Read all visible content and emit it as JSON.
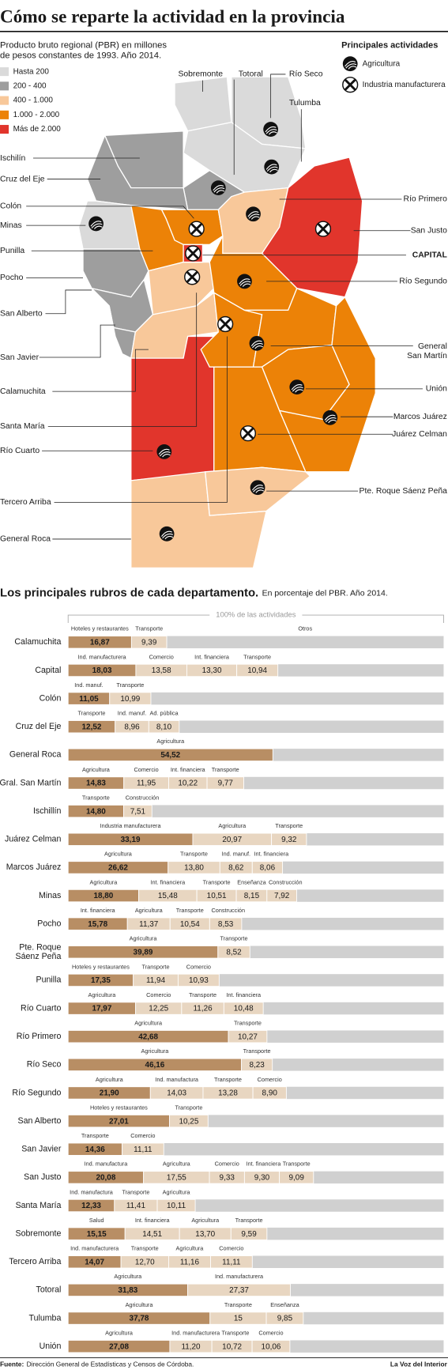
{
  "header": {
    "title": "Cómo se reparte la actividad en la provincia",
    "subtitle": [
      "Producto bruto regional (PBR) en millones",
      "de pesos constantes de 1993. Año 2014."
    ]
  },
  "map": {
    "ranges": [
      {
        "label": "Hasta 200",
        "color": "#dadada"
      },
      {
        "label": "200 - 400",
        "color": "#9e9e9e"
      },
      {
        "label": "400 - 1.000",
        "color": "#f8c89a"
      },
      {
        "label": "1.000 - 2.000",
        "color": "#ec8207"
      },
      {
        "label": "Más de 2.000",
        "color": "#e1352c"
      }
    ],
    "activities_title": "Principales actividades",
    "activities": [
      "Agricultura",
      "Industria manufacturera"
    ],
    "departments": [
      {
        "name": "Sobremonte",
        "range": 0
      },
      {
        "name": "Totoral",
        "range": 1,
        "activity": 0
      },
      {
        "name": "Río Seco",
        "range": 0,
        "activity": 0
      },
      {
        "name": "Tulumba",
        "range": 0,
        "activity": 0
      },
      {
        "name": "Ischilín",
        "range": 1
      },
      {
        "name": "Cruz del Eje",
        "range": 1
      },
      {
        "name": "Colón",
        "range": 3,
        "activity": 1
      },
      {
        "name": "Minas",
        "range": 0,
        "activity": 0
      },
      {
        "name": "Punilla",
        "range": 3
      },
      {
        "name": "Pocho",
        "range": 1
      },
      {
        "name": "San Alberto",
        "range": 1
      },
      {
        "name": "San Javier",
        "range": 1
      },
      {
        "name": "Calamuchita",
        "range": 2
      },
      {
        "name": "Santa María",
        "range": 2,
        "activity": 1
      },
      {
        "name": "Río Cuarto",
        "range": 4,
        "activity": 0
      },
      {
        "name": "Tercero Arriba",
        "range": 3,
        "activity": 1
      },
      {
        "name": "General Roca",
        "range": 2,
        "activity": 0
      },
      {
        "name": "Río Primero",
        "range": 2,
        "activity": 0
      },
      {
        "name": "San Justo",
        "range": 4,
        "activity": 1
      },
      {
        "name": "CAPITAL",
        "range": 4,
        "activity": 1
      },
      {
        "name": "Río Segundo",
        "range": 3,
        "activity": 0
      },
      {
        "name": [
          "General",
          "San Martín"
        ],
        "range": 3,
        "activity": 0
      },
      {
        "name": "Unión",
        "range": 3,
        "activity": 0
      },
      {
        "name": "Marcos Juárez",
        "range": 3,
        "activity": 0
      },
      {
        "name": "Juárez Celman",
        "range": 3,
        "activity": 1
      },
      {
        "name": "Pte. Roque Sáenz Peña",
        "range": 2,
        "activity": 0
      }
    ]
  },
  "chart_data": {
    "type": "stacked-bar",
    "title": "Los principales rubros de cada departamento.",
    "subtitle": "En porcentaje del PBR. Año 2014.",
    "scale_label": "100% de las actividades",
    "xlim": [
      0,
      100
    ],
    "first_color": "#b88e64",
    "other_color": "#e8d6c1",
    "rest_color": "#d0d0d0",
    "rest_label": "Otros",
    "rows": [
      {
        "name": "Calamuchita",
        "segments": [
          {
            "name": "Hoteles y restaurantes",
            "value": 16.87,
            "value_label": "16,87"
          },
          {
            "name": "Transporte",
            "value": 9.39,
            "value_label": "9,39"
          }
        ]
      },
      {
        "name": "Capital",
        "segments": [
          {
            "name": "Ind. manufacturera",
            "value": 18.03,
            "value_label": "18,03"
          },
          {
            "name": "Comercio",
            "value": 13.58,
            "value_label": "13,58"
          },
          {
            "name": "Int. financiera",
            "value": 13.3,
            "value_label": "13,30"
          },
          {
            "name": "Transporte",
            "value": 10.94,
            "value_label": "10,94"
          }
        ]
      },
      {
        "name": "Colón",
        "segments": [
          {
            "name": "Ind. manuf.",
            "value": 11.05,
            "value_label": "11,05"
          },
          {
            "name": "Transporte",
            "value": 10.99,
            "value_label": "10,99"
          }
        ]
      },
      {
        "name": "Cruz del Eje",
        "segments": [
          {
            "name": "Transporte",
            "value": 12.52,
            "value_label": "12,52"
          },
          {
            "name": "Ind. manuf.",
            "value": 8.96,
            "value_label": "8,96"
          },
          {
            "name": "Ad. pública",
            "value": 8.1,
            "value_label": "8,10"
          }
        ]
      },
      {
        "name": "General Roca",
        "segments": [
          {
            "name": "Agricultura",
            "value": 54.52,
            "value_label": "54,52"
          }
        ]
      },
      {
        "name": "Gral. San Martín",
        "segments": [
          {
            "name": "Agricultura",
            "value": 14.83,
            "value_label": "14,83"
          },
          {
            "name": "Comercio",
            "value": 11.95,
            "value_label": "11,95"
          },
          {
            "name": "Int. financiera",
            "value": 10.22,
            "value_label": "10,22"
          },
          {
            "name": "Transporte",
            "value": 9.77,
            "value_label": "9,77"
          }
        ]
      },
      {
        "name": "Ischillín",
        "segments": [
          {
            "name": "Transporte",
            "value": 14.8,
            "value_label": "14,80"
          },
          {
            "name": "Construcción",
            "value": 7.51,
            "value_label": "7,51"
          }
        ]
      },
      {
        "name": "Juárez Celman",
        "segments": [
          {
            "name": "Industria manufacturera",
            "value": 33.19,
            "value_label": "33,19"
          },
          {
            "name": "Agricultura",
            "value": 20.97,
            "value_label": "20,97"
          },
          {
            "name": "Transporte",
            "value": 9.32,
            "value_label": "9,32"
          }
        ]
      },
      {
        "name": "Marcos Juárez",
        "segments": [
          {
            "name": "Agricultura",
            "value": 26.62,
            "value_label": "26,62"
          },
          {
            "name": "Transporte",
            "value": 13.8,
            "value_label": "13,80"
          },
          {
            "name": "Ind. manuf.",
            "value": 8.62,
            "value_label": "8,62"
          },
          {
            "name": "Int. financiera",
            "value": 8.06,
            "value_label": "8,06"
          }
        ]
      },
      {
        "name": "Minas",
        "segments": [
          {
            "name": "Agricultura",
            "value": 18.8,
            "value_label": "18,80"
          },
          {
            "name": "Int. financiera",
            "value": 15.48,
            "value_label": "15,48"
          },
          {
            "name": "Transporte",
            "value": 10.51,
            "value_label": "10,51"
          },
          {
            "name": "Enseñanza",
            "value": 8.15,
            "value_label": "8,15"
          },
          {
            "name": "Construcción",
            "value": 7.92,
            "value_label": "7,92"
          }
        ]
      },
      {
        "name": "Pocho",
        "segments": [
          {
            "name": "Int. financiera",
            "value": 15.78,
            "value_label": "15,78"
          },
          {
            "name": "Agricultura",
            "value": 11.37,
            "value_label": "11,37"
          },
          {
            "name": "Transporte",
            "value": 10.54,
            "value_label": "10,54"
          },
          {
            "name": "Construcción",
            "value": 8.53,
            "value_label": "8,53"
          }
        ]
      },
      {
        "name": [
          "Pte. Roque",
          "Sáenz Peña"
        ],
        "segments": [
          {
            "name": "Agricultura",
            "value": 39.89,
            "value_label": "39,89"
          },
          {
            "name": "Transporte",
            "value": 8.52,
            "value_label": "8,52"
          }
        ]
      },
      {
        "name": "Punilla",
        "segments": [
          {
            "name": "Hoteles y restaurantes",
            "value": 17.35,
            "value_label": "17,35"
          },
          {
            "name": "Transporte",
            "value": 11.94,
            "value_label": "11,94"
          },
          {
            "name": "Comercio",
            "value": 10.93,
            "value_label": "10,93"
          }
        ]
      },
      {
        "name": "Río Cuarto",
        "segments": [
          {
            "name": "Agricultura",
            "value": 17.97,
            "value_label": "17,97"
          },
          {
            "name": "Comercio",
            "value": 12.25,
            "value_label": "12,25"
          },
          {
            "name": "Transporte",
            "value": 11.26,
            "value_label": "11,26"
          },
          {
            "name": "Int. financiera",
            "value": 10.48,
            "value_label": "10,48"
          }
        ]
      },
      {
        "name": "Río Primero",
        "segments": [
          {
            "name": "Agricultura",
            "value": 42.68,
            "value_label": "42,68"
          },
          {
            "name": "Transporte",
            "value": 10.27,
            "value_label": "10,27"
          }
        ]
      },
      {
        "name": "Río Seco",
        "segments": [
          {
            "name": "Agricultura",
            "value": 46.16,
            "value_label": "46,16"
          },
          {
            "name": "Transporte",
            "value": 8.23,
            "value_label": "8,23"
          }
        ]
      },
      {
        "name": "Río Segundo",
        "segments": [
          {
            "name": "Agricultura",
            "value": 21.9,
            "value_label": "21,90"
          },
          {
            "name": "Ind. manufactura",
            "value": 14.03,
            "value_label": "14,03"
          },
          {
            "name": "Transporte",
            "value": 13.28,
            "value_label": "13,28"
          },
          {
            "name": "Comercio",
            "value": 8.9,
            "value_label": "8,90"
          }
        ]
      },
      {
        "name": "San Alberto",
        "segments": [
          {
            "name": "Hoteles y restaurantes",
            "value": 27.01,
            "value_label": "27,01"
          },
          {
            "name": "Transporte",
            "value": 10.25,
            "value_label": "10,25"
          }
        ]
      },
      {
        "name": "San Javier",
        "segments": [
          {
            "name": "Transporte",
            "value": 14.36,
            "value_label": "14,36"
          },
          {
            "name": "Comercio",
            "value": 11.11,
            "value_label": "11,11"
          }
        ]
      },
      {
        "name": "San Justo",
        "segments": [
          {
            "name": "Ind. manufactura",
            "value": 20.08,
            "value_label": "20,08"
          },
          {
            "name": "Agricultura",
            "value": 17.55,
            "value_label": "17,55"
          },
          {
            "name": "Comercio",
            "value": 9.33,
            "value_label": "9,33"
          },
          {
            "name": "Int. financiera",
            "value": 9.3,
            "value_label": "9,30"
          },
          {
            "name": "Transporte",
            "value": 9.09,
            "value_label": "9,09"
          }
        ]
      },
      {
        "name": "Santa María",
        "segments": [
          {
            "name": "Ind. manufactura",
            "value": 12.33,
            "value_label": "12,33"
          },
          {
            "name": "Transporte",
            "value": 11.41,
            "value_label": "11,41"
          },
          {
            "name": "Agricultura",
            "value": 10.11,
            "value_label": "10,11"
          }
        ]
      },
      {
        "name": "Sobremonte",
        "segments": [
          {
            "name": "Salud",
            "value": 15.15,
            "value_label": "15,15"
          },
          {
            "name": "Int. financiera",
            "value": 14.51,
            "value_label": "14,51"
          },
          {
            "name": "Agricultura",
            "value": 13.7,
            "value_label": "13,70"
          },
          {
            "name": "Transporte",
            "value": 9.59,
            "value_label": "9,59"
          }
        ]
      },
      {
        "name": "Tercero Arriba",
        "segments": [
          {
            "name": "Ind. manufacturera",
            "value": 14.07,
            "value_label": "14,07"
          },
          {
            "name": "Transporte",
            "value": 12.7,
            "value_label": "12,70"
          },
          {
            "name": "Agricultura",
            "value": 11.16,
            "value_label": "11,16"
          },
          {
            "name": "Comercio",
            "value": 11.11,
            "value_label": "11,11"
          }
        ]
      },
      {
        "name": "Totoral",
        "segments": [
          {
            "name": "Agricultura",
            "value": 31.83,
            "value_label": "31,83"
          },
          {
            "name": "Ind. manufacturera",
            "value": 27.37,
            "value_label": "27,37"
          }
        ]
      },
      {
        "name": "Tulumba",
        "segments": [
          {
            "name": "Agricultura",
            "value": 37.78,
            "value_label": "37,78"
          },
          {
            "name": "Transporte",
            "value": 15
          },
          {
            "name": "Enseñanza",
            "value": 9.85,
            "value_label": "9,85"
          }
        ]
      },
      {
        "name": "Unión",
        "segments": [
          {
            "name": "Agricultura",
            "value": 27.08,
            "value_label": "27,08"
          },
          {
            "name": "Ind. manufacturera",
            "value": 11.2,
            "value_label": "11,20"
          },
          {
            "name": "Transporte",
            "value": 10.72,
            "value_label": "10,72"
          },
          {
            "name": "Comercio",
            "value": 10.06,
            "value_label": "10,06"
          }
        ]
      }
    ]
  },
  "footer": {
    "source_label": "Fuente:",
    "source": "Dirección General de Estadísticas y Censos de Córdoba.",
    "brand": "La Voz del Interior"
  }
}
